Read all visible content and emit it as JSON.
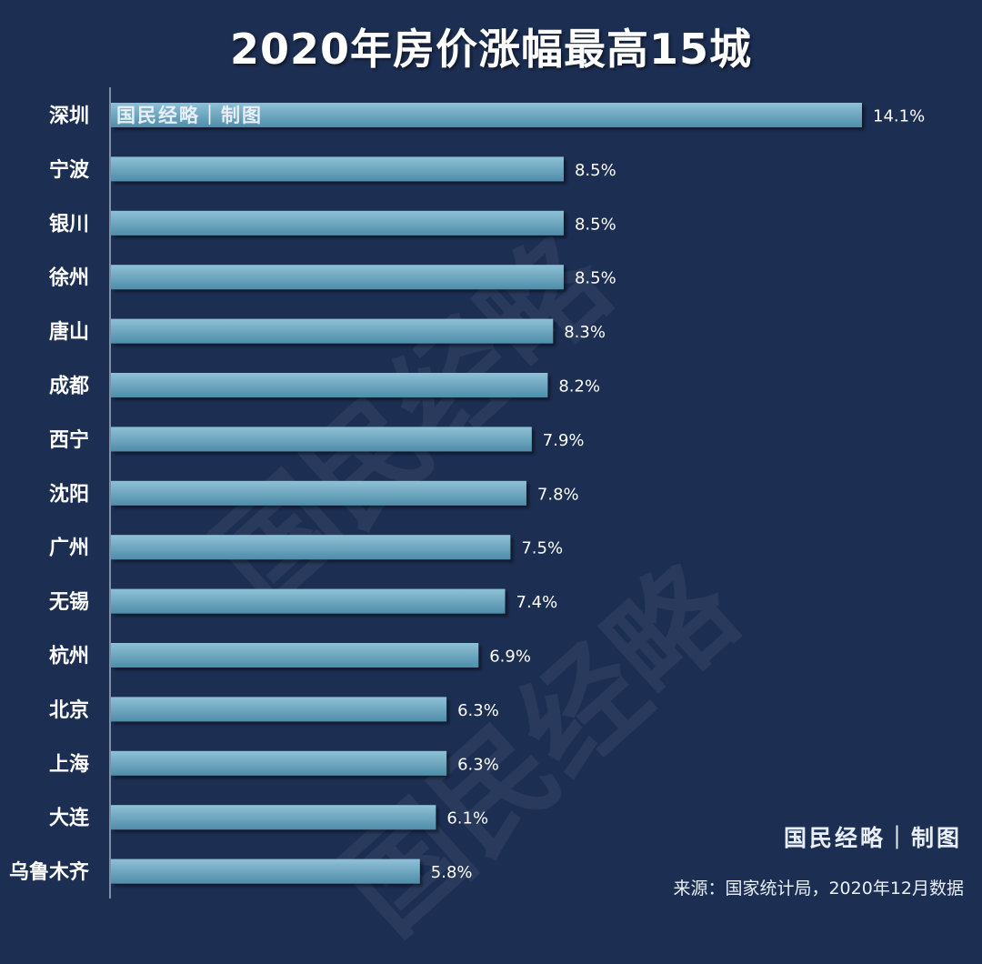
{
  "header": {
    "title": "2020年房价涨幅最高15城"
  },
  "brand_top": "国民经略｜制图",
  "brand_bottom": "国民经略｜制图",
  "source": "来源：国家统计局，2020年12月数据",
  "watermark": "国民经略",
  "colors": {
    "background": "#1c2e52",
    "bar_top": "#8fc1d6",
    "bar_bottom": "#4f8da9",
    "text": "#ffffff"
  },
  "chart_data": {
    "type": "bar",
    "orientation": "horizontal",
    "title": "2020年房价涨幅最高15城",
    "categories": [
      "深圳",
      "宁波",
      "银川",
      "徐州",
      "唐山",
      "成都",
      "西宁",
      "沈阳",
      "广州",
      "无锡",
      "杭州",
      "北京",
      "上海",
      "大连",
      "乌鲁木齐"
    ],
    "values": [
      14.1,
      8.5,
      8.5,
      8.5,
      8.3,
      8.2,
      7.9,
      7.8,
      7.5,
      7.4,
      6.9,
      6.3,
      6.3,
      6.1,
      5.8
    ],
    "value_labels": [
      "14.1%",
      "8.5%",
      "8.5%",
      "8.5%",
      "8.3%",
      "8.2%",
      "7.9%",
      "7.8%",
      "7.5%",
      "7.4%",
      "6.9%",
      "6.3%",
      "6.3%",
      "6.1%",
      "5.8%"
    ],
    "xlim": [
      0,
      14.1
    ]
  }
}
